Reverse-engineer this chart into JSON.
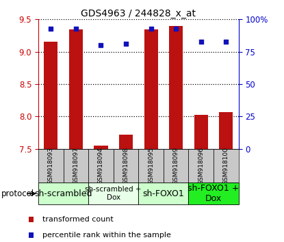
{
  "title": "GDS4963 / 244828_x_at",
  "samples": [
    "GSM918093",
    "GSM918097",
    "GSM918094",
    "GSM918098",
    "GSM918095",
    "GSM918099",
    "GSM918096",
    "GSM918100"
  ],
  "transformed_counts": [
    9.15,
    9.35,
    7.55,
    7.72,
    9.35,
    9.4,
    8.03,
    8.07
  ],
  "percentile_ranks": [
    93,
    93,
    80,
    81,
    93,
    93,
    83,
    83
  ],
  "ylim_left": [
    7.5,
    9.5
  ],
  "ylim_right": [
    0,
    100
  ],
  "yticks_left": [
    7.5,
    8.0,
    8.5,
    9.0,
    9.5
  ],
  "yticks_right": [
    0,
    25,
    50,
    75,
    100
  ],
  "yticklabels_right": [
    "0",
    "25",
    "50",
    "75",
    "100%"
  ],
  "bar_color": "#bb1111",
  "dot_color": "#1111bb",
  "bar_width": 0.55,
  "group_colors": [
    "#ccffcc",
    "#e8ffe8",
    "#ccffcc",
    "#22ee22"
  ],
  "group_labels": [
    "sh-scrambled",
    "sh-scrambled +\nDox",
    "sh-FOXO1",
    "sh-FOXO1 +\nDox"
  ],
  "group_sample_ranges": [
    [
      0,
      1
    ],
    [
      2,
      3
    ],
    [
      4,
      5
    ],
    [
      6,
      7
    ]
  ],
  "group_fontsizes": [
    9,
    7.5,
    9,
    9
  ],
  "protocol_label": "protocol",
  "tick_label_color_left": "#cc0000",
  "tick_label_color_right": "#0000cc",
  "grid_color": "black",
  "sample_box_color": "#c8c8c8",
  "legend_items": [
    "transformed count",
    "percentile rank within the sample"
  ]
}
